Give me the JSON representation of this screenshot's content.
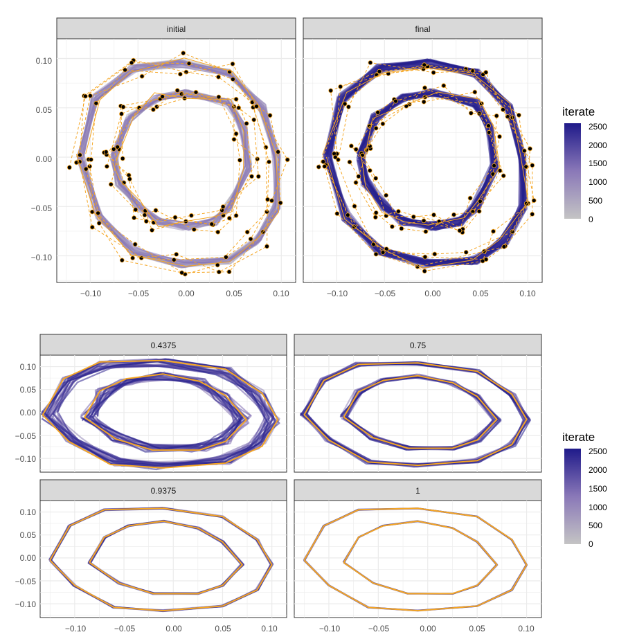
{
  "figure": {
    "legend_title": "iterate",
    "legend_breaks": [
      "2500",
      "2000",
      "1500",
      "1000",
      "500",
      "0"
    ],
    "colors": {
      "low": "#c4c4c4",
      "mid": "#8a78b8",
      "high": "#1f1a8a",
      "data": "#f5a623",
      "point": "#000000",
      "strip": "#d9d9d9",
      "grid": "#ebebeb",
      "border": "#333333"
    }
  },
  "chart_data": [
    {
      "type": "line",
      "group": "top",
      "facets": [
        "initial",
        "final"
      ],
      "x_ticks": [
        "−0.10",
        "−0.05",
        "0.00",
        "0.05",
        "0.10"
      ],
      "y_ticks": [
        "0.10",
        "0.05",
        "0.00",
        "−0.05",
        "−0.10"
      ],
      "xlim": [
        -0.135,
        0.115
      ],
      "ylim": [
        -0.127,
        0.12
      ],
      "legend": "iterate",
      "rings": [
        {
          "name": "outer",
          "x": [
            -0.11,
            -0.095,
            -0.055,
            -0.005,
            0.045,
            0.08,
            0.095,
            0.095,
            0.075,
            0.045,
            -0.005,
            -0.055,
            -0.09,
            -0.11
          ],
          "y": [
            0.0,
            0.06,
            0.09,
            0.095,
            0.085,
            0.05,
            0.0,
            -0.05,
            -0.085,
            -0.105,
            -0.108,
            -0.095,
            -0.06,
            0.0
          ]
        },
        {
          "name": "inner",
          "x": [
            -0.075,
            -0.06,
            -0.03,
            0.0,
            0.045,
            0.06,
            0.065,
            0.045,
            0.03,
            0.0,
            -0.03,
            -0.05,
            -0.07,
            -0.075
          ],
          "y": [
            0.0,
            0.04,
            0.06,
            0.065,
            0.055,
            0.03,
            -0.01,
            -0.05,
            -0.065,
            -0.07,
            -0.065,
            -0.05,
            -0.025,
            0.0
          ]
        }
      ]
    },
    {
      "type": "line",
      "group": "bottom",
      "facets": [
        "0.4375",
        "0.75",
        "0.9375",
        "1"
      ],
      "x_ticks": [
        "−0.10",
        "−0.05",
        "0.00",
        "0.05",
        "0.10"
      ],
      "y_ticks": [
        "0.10",
        "0.05",
        "0.00",
        "−0.05",
        "−0.10"
      ],
      "xlim": [
        -0.135,
        0.115
      ],
      "ylim": [
        -0.13,
        0.125
      ],
      "legend": "iterate",
      "rings": [
        {
          "name": "outer",
          "x": [
            -0.125,
            -0.105,
            -0.07,
            -0.01,
            0.05,
            0.085,
            0.1,
            0.085,
            0.05,
            -0.01,
            -0.06,
            -0.1,
            -0.125
          ],
          "y": [
            -0.005,
            0.07,
            0.105,
            0.108,
            0.09,
            0.04,
            -0.015,
            -0.07,
            -0.105,
            -0.115,
            -0.108,
            -0.06,
            -0.005
          ]
        },
        {
          "name": "inner",
          "x": [
            -0.085,
            -0.07,
            -0.045,
            -0.01,
            0.025,
            0.05,
            0.07,
            0.05,
            0.025,
            -0.02,
            -0.055,
            -0.085
          ],
          "y": [
            -0.01,
            0.045,
            0.07,
            0.08,
            0.065,
            0.035,
            -0.015,
            -0.06,
            -0.078,
            -0.078,
            -0.055,
            -0.01
          ]
        }
      ]
    }
  ]
}
